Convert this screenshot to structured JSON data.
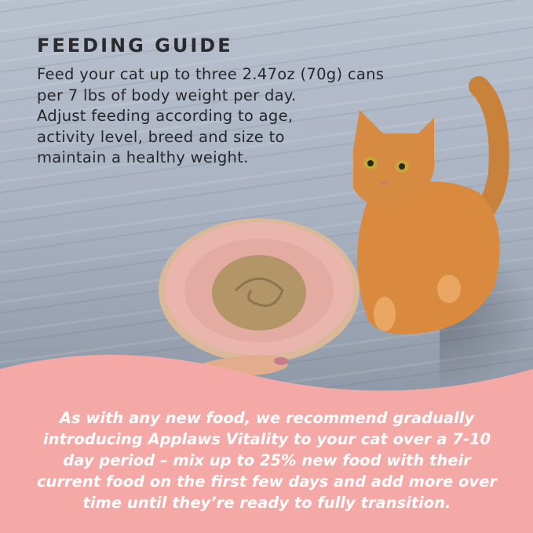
{
  "feeding_guide": {
    "title": "FEEDING GUIDE",
    "lines": [
      "Feed your cat up to three 2.47oz (70g) cans",
      "per 7 lbs of body weight per day.",
      "Adjust feeding according to age,",
      "activity level, breed and size to",
      "maintain a healthy weight."
    ]
  },
  "transition_note": {
    "lines": [
      "As with any new food, we recommend gradually",
      "introducing Applaws Vitality to your cat over a 7-10",
      "day period – mix up to 25% new food with their",
      "current food on the first few days and add more over",
      "time until they’re ready to fully transition."
    ]
  },
  "colors": {
    "banner_pink": "#f4a9a6",
    "plate_pink": "#e9b5ac",
    "cat_orange": "#d98a3e",
    "text_dark": "#26272b"
  }
}
